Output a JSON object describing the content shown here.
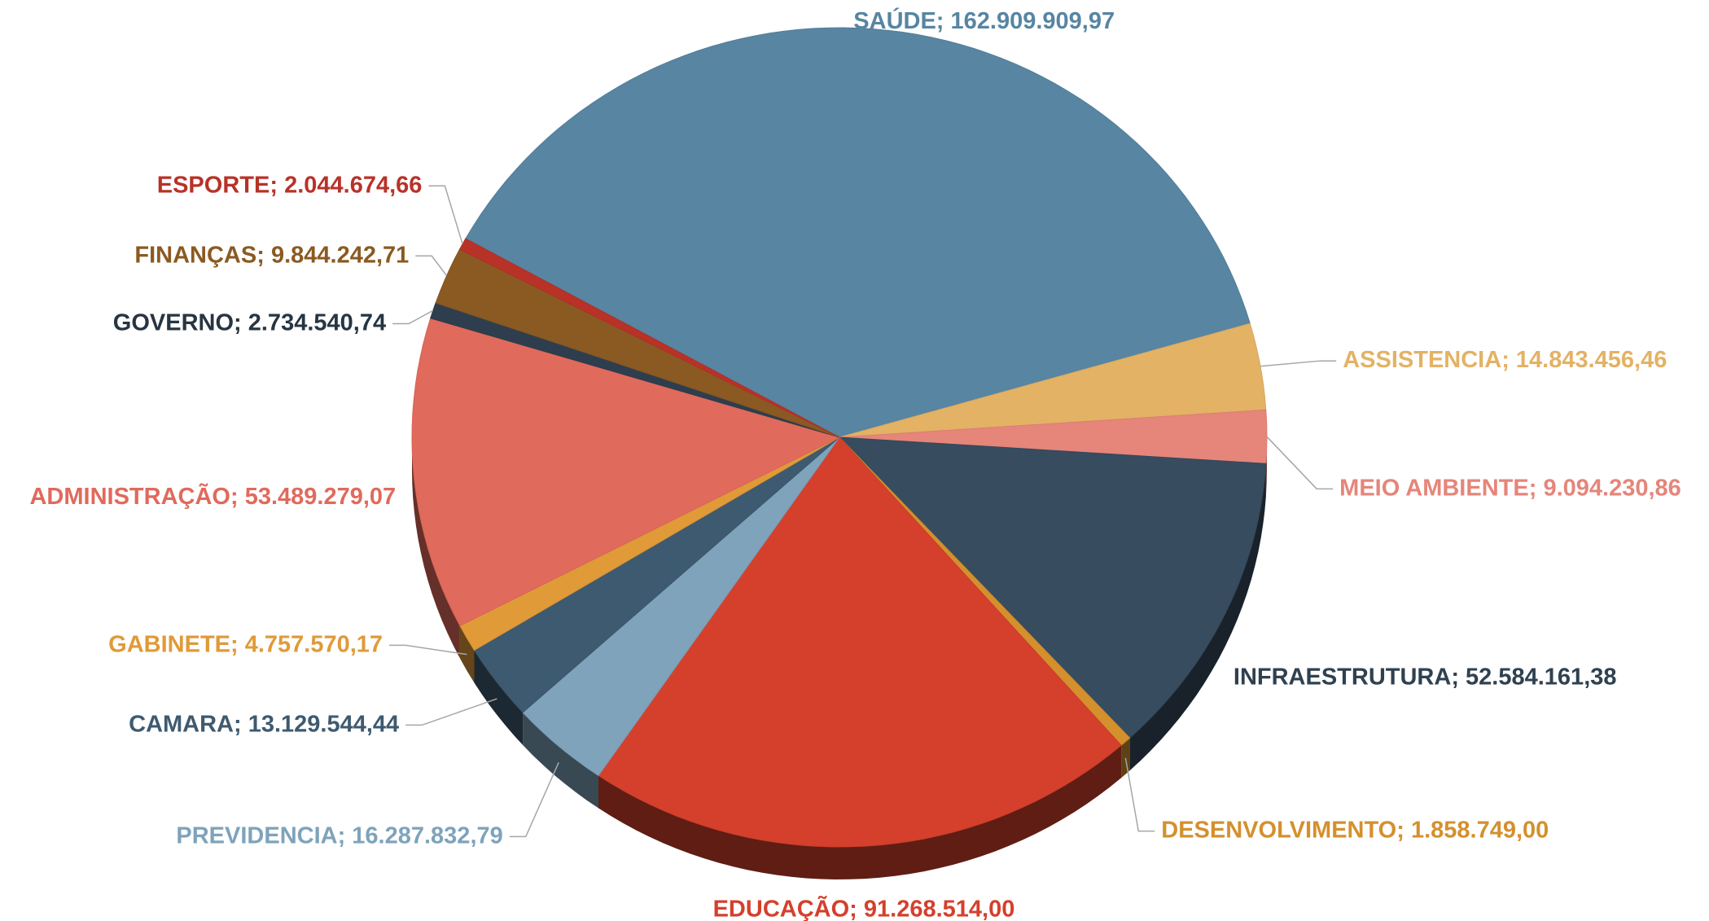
{
  "chart_data": {
    "type": "pie",
    "separator": "; ",
    "categories": [
      "SAÚDE",
      "ASSISTENCIA",
      "MEIO AMBIENTE",
      "INFRAESTRUTURA",
      "DESENVOLVIMENTO",
      "EDUCAÇÃO",
      "PREVIDENCIA",
      "CAMARA",
      "GABINETE",
      "ADMINISTRAÇÃO",
      "GOVERNO",
      "FINANÇAS",
      "ESPORTE"
    ],
    "values": [
      162909909.97,
      14843456.46,
      9094230.86,
      52584161.38,
      1858749.0,
      91268514.0,
      16287832.79,
      13129544.44,
      4757570.17,
      53489279.07,
      2734540.74,
      9844242.71,
      2044674.66
    ],
    "value_labels": [
      "162.909.909,97",
      "14.843.456,46",
      "9.094.230,86",
      "52.584.161,38",
      "1.858.749,00",
      "91.268.514,00",
      "16.287.832,79",
      "13.129.544,44",
      "4.757.570,17",
      "53.489.279,07",
      "2.734.540,74",
      "9.844.242,71",
      "2.044.674,66"
    ],
    "colors": [
      "#5785a2",
      "#e3b265",
      "#e6857a",
      "#374c5e",
      "#d4902d",
      "#d4402c",
      "#7ea3bb",
      "#3e5a70",
      "#e09a38",
      "#e06a5c",
      "#2e3e4e",
      "#8a5a22",
      "#b83228"
    ]
  }
}
